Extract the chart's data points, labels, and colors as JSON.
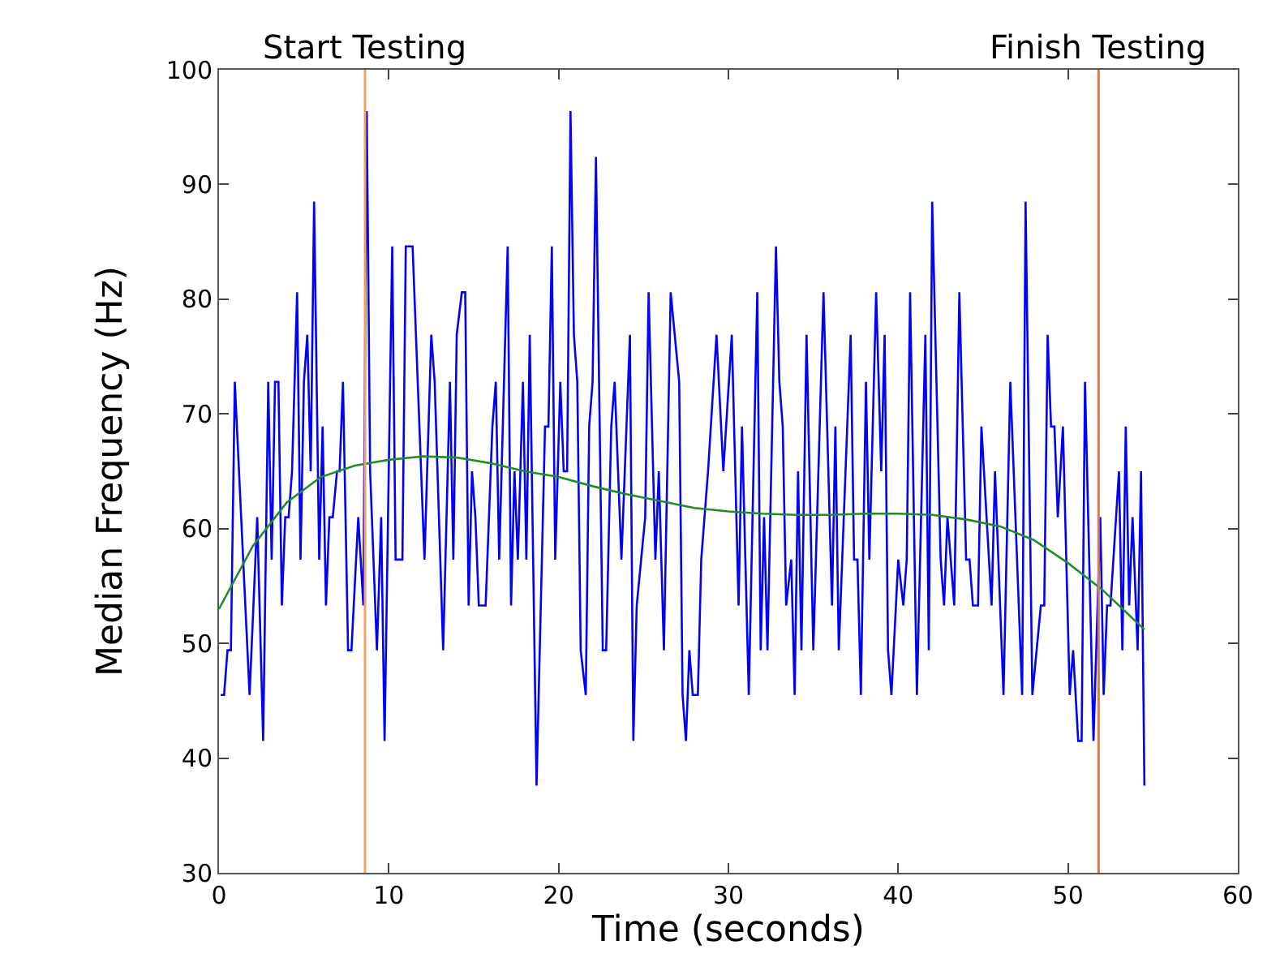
{
  "chart_data": {
    "type": "line",
    "xlabel": "Time (seconds)",
    "ylabel": "Median Frequency (Hz)",
    "xlim": [
      0,
      60
    ],
    "xticks": [
      0,
      10,
      20,
      30,
      40,
      50,
      60
    ],
    "ylim": [
      30,
      100
    ],
    "yticks": [
      30,
      40,
      50,
      60,
      70,
      80,
      90,
      100
    ],
    "marker": "none",
    "line_style": "solid",
    "series": [
      {
        "color": "#0000ff",
        "x": [
          0.1,
          0.3,
          0.5,
          0.7,
          0.93,
          1.4,
          1.8,
          2.25,
          2.6,
          2.9,
          3.1,
          3.3,
          3.5,
          3.7,
          3.9,
          4.1,
          4.3,
          4.6,
          4.8,
          5.0,
          5.2,
          5.4,
          5.6,
          5.9,
          6.1,
          6.3,
          6.5,
          6.7,
          6.95,
          7.1,
          7.3,
          7.6,
          7.8,
          8.2,
          8.5,
          8.7,
          8.9,
          9.3,
          9.55,
          9.75,
          10.2,
          10.4,
          10.8,
          11.0,
          11.4,
          12.1,
          12.5,
          12.7,
          13.2,
          13.6,
          13.8,
          14.0,
          14.3,
          14.5,
          14.7,
          14.9,
          15.1,
          15.3,
          15.7,
          16.1,
          16.3,
          16.5,
          17.0,
          17.2,
          17.4,
          17.6,
          17.9,
          18.1,
          18.3,
          18.7,
          19.2,
          19.4,
          19.6,
          19.8,
          20.1,
          20.3,
          20.5,
          20.7,
          20.9,
          21.1,
          21.3,
          21.6,
          21.8,
          22.0,
          22.2,
          22.6,
          22.8,
          23.1,
          23.3,
          23.7,
          24.2,
          24.4,
          24.6,
          25.1,
          25.3,
          25.7,
          25.9,
          26.2,
          26.6,
          27.1,
          27.3,
          27.5,
          27.7,
          27.9,
          28.2,
          28.4,
          28.8,
          29.3,
          29.7,
          30.2,
          30.6,
          30.8,
          31.2,
          31.7,
          31.9,
          32.1,
          32.3,
          32.8,
          33.0,
          33.2,
          33.4,
          33.7,
          33.9,
          34.1,
          34.3,
          34.6,
          35.0,
          35.6,
          36.1,
          36.3,
          36.5,
          37.2,
          37.4,
          37.6,
          37.8,
          38.1,
          38.3,
          38.7,
          39.0,
          39.2,
          39.4,
          39.6,
          40.0,
          40.3,
          40.5,
          40.7,
          41.1,
          41.6,
          41.8,
          42.0,
          42.5,
          42.7,
          42.9,
          43.3,
          43.6,
          44.0,
          44.2,
          44.4,
          44.7,
          44.9,
          45.5,
          45.7,
          46.2,
          46.6,
          47.3,
          47.5,
          47.9,
          48.4,
          48.6,
          48.8,
          49.0,
          49.2,
          49.4,
          49.7,
          50.1,
          50.3,
          50.6,
          50.8,
          51.0,
          51.5,
          51.9,
          52.1,
          52.3,
          52.5,
          53.0,
          53.2,
          53.4,
          53.6,
          53.8,
          54.1,
          54.3,
          54.5
        ],
        "values": [
          45.5,
          45.5,
          49.4,
          49.4,
          72.8,
          58,
          45.5,
          61,
          41.5,
          72.8,
          57.3,
          72.8,
          72.8,
          53.3,
          61,
          61,
          65,
          80.6,
          57.3,
          72.8,
          76.9,
          65,
          88.5,
          57.3,
          68.9,
          53.3,
          61,
          61,
          65,
          65,
          72.8,
          49.4,
          49.4,
          61,
          53.3,
          96.4,
          65,
          49.4,
          61,
          41.5,
          84.6,
          57.3,
          57.3,
          84.6,
          84.6,
          57.3,
          76.9,
          72.8,
          49.4,
          72.8,
          57.3,
          76.9,
          80.6,
          80.6,
          53.3,
          65,
          61,
          53.3,
          53.3,
          68.9,
          72.8,
          57.3,
          84.6,
          53.3,
          65,
          57.3,
          72.8,
          57.3,
          76.9,
          37.6,
          68.9,
          68.9,
          84.6,
          57.3,
          72.8,
          65,
          65,
          96.4,
          76.9,
          72.8,
          49.4,
          45.5,
          68.9,
          72.8,
          92.4,
          49.4,
          49.4,
          68.9,
          72.8,
          57.3,
          76.9,
          41.5,
          53.3,
          61,
          80.6,
          57.3,
          65,
          49.4,
          80.6,
          72.8,
          45.5,
          41.5,
          49.4,
          45.5,
          45.5,
          57.3,
          65,
          76.9,
          65,
          76.9,
          53.3,
          68.9,
          45.5,
          80.6,
          49.4,
          61,
          49.4,
          84.6,
          72.8,
          68.9,
          53.3,
          57.3,
          45.5,
          65,
          49.4,
          76.9,
          49.4,
          80.6,
          53.3,
          68.9,
          49.4,
          76.9,
          57.3,
          57.3,
          45.5,
          72.8,
          57.3,
          80.6,
          65,
          76.9,
          49.4,
          45.5,
          57.3,
          53.3,
          57.3,
          80.6,
          45.5,
          76.9,
          49.4,
          88.5,
          57.3,
          53.3,
          61,
          53.3,
          80.6,
          57.3,
          57.3,
          53.3,
          53.3,
          68.9,
          53.3,
          65,
          45.5,
          72.8,
          45.5,
          88.5,
          45.5,
          53.3,
          53.3,
          76.9,
          68.9,
          68.9,
          61,
          68.9,
          45.5,
          49.4,
          41.5,
          41.5,
          72.8,
          41.5,
          61,
          45.5,
          53.3,
          53.3,
          65,
          49.4,
          68.9,
          53.3,
          61,
          49.4,
          65,
          37.6
        ]
      },
      {
        "color": "#228b22",
        "x": [
          0,
          2,
          4,
          6,
          8,
          10,
          12,
          14,
          16,
          18,
          20,
          22,
          24,
          26,
          28,
          30,
          32,
          34,
          36,
          38,
          40,
          42,
          44,
          46,
          48,
          50,
          52,
          54.5
        ],
        "values": [
          53,
          58.5,
          62.3,
          64.5,
          65.5,
          66,
          66.3,
          66.2,
          65.7,
          65,
          64.5,
          63.7,
          63,
          62.4,
          61.8,
          61.5,
          61.3,
          61.2,
          61.2,
          61.3,
          61.3,
          61.2,
          60.8,
          60.2,
          59,
          57,
          54.7,
          51.2
        ]
      }
    ],
    "ref_lines": [
      {
        "axis": "x",
        "value": 8.6,
        "label": "Start Testing",
        "color": "#f4a261"
      },
      {
        "axis": "x",
        "value": 51.8,
        "label": "Finish Testing",
        "color": "#e8743b"
      }
    ]
  }
}
